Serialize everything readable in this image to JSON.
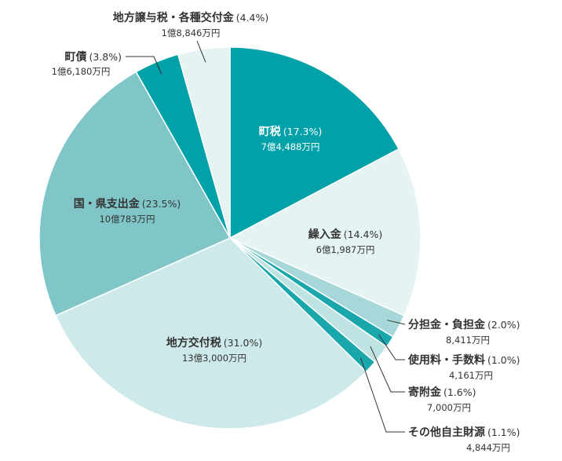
{
  "chart_data": {
    "type": "pie",
    "title": "",
    "start": "top",
    "direction": "clockwise",
    "slices": [
      {
        "label": "町税",
        "percent_text": "(17.3%)",
        "value": 17.3,
        "amount": "7億4,488万円",
        "color": "#00a1a8"
      },
      {
        "label": "繰入金",
        "percent_text": "(14.4%)",
        "value": 14.4,
        "amount": "6億1,987万円",
        "color": "#e5f3f3"
      },
      {
        "label": "分担金・負担金",
        "percent_text": "(2.0%)",
        "value": 2.0,
        "amount": "8,411万円",
        "color": "#a7d7d8"
      },
      {
        "label": "使用料・手数料",
        "percent_text": "(1.0%)",
        "value": 1.0,
        "amount": "4,161万円",
        "color": "#1aa7ac"
      },
      {
        "label": "寄附金",
        "percent_text": "(1.6%)",
        "value": 1.6,
        "amount": "7,000万円",
        "color": "#bfe2e2"
      },
      {
        "label": "その他自主財源",
        "percent_text": "(1.1%)",
        "value": 1.1,
        "amount": "4,844万円",
        "color": "#1aa7ac"
      },
      {
        "label": "地方交付税",
        "percent_text": "(31.0%)",
        "value": 31.0,
        "amount": "13億3,000万円",
        "color": "#cde9e9"
      },
      {
        "label": "国・県支出金",
        "percent_text": "(23.5%)",
        "value": 23.5,
        "amount": "10億783万円",
        "color": "#80c6c8"
      },
      {
        "label": "町債",
        "percent_text": "(3.8%)",
        "value": 3.8,
        "amount": "1億6,180万円",
        "color": "#00a1a8"
      },
      {
        "label": "地方譲与税・各種交付金",
        "percent_text": "(4.4%)",
        "value": 4.4,
        "amount": "1億8,846万円",
        "color": "#e5f3f3"
      }
    ]
  }
}
